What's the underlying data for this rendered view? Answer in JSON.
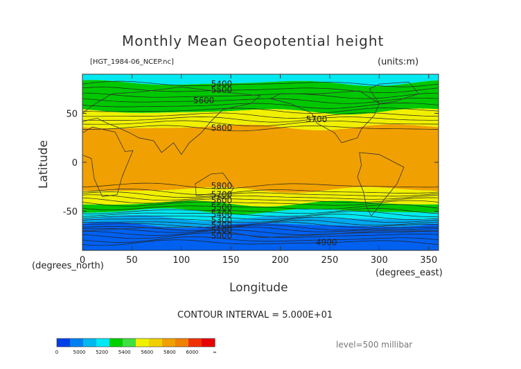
{
  "chart_data": {
    "type": "heatmap",
    "title": "Monthly Mean Geopotential height",
    "file_label": "[HGT_1984-06_NCEP.nc]",
    "units_label": "(units:m)",
    "xlabel": "Longitude",
    "ylabel": "Latitude",
    "x_unit_label": "(degrees_east)",
    "y_unit_label": "(degrees_north)",
    "xlim": [
      0,
      360
    ],
    "ylim": [
      -90,
      90
    ],
    "x_ticks": [
      "0",
      "50",
      "100",
      "150",
      "200",
      "250",
      "300",
      "350"
    ],
    "y_ticks": [
      "50",
      "0",
      "-50"
    ],
    "contour_interval_label": "CONTOUR INTERVAL = 5.000E+01",
    "level_label": "level=500 millibar",
    "contour_labels": [
      {
        "text": "5400",
        "x": 130,
        "y": 80
      },
      {
        "text": "5500",
        "x": 130,
        "y": 74
      },
      {
        "text": "5600",
        "x": 112,
        "y": 63
      },
      {
        "text": "5700",
        "x": 226,
        "y": 44
      },
      {
        "text": "5800",
        "x": 130,
        "y": 35
      },
      {
        "text": "5800",
        "x": 130,
        "y": -24
      },
      {
        "text": "5700",
        "x": 130,
        "y": -33
      },
      {
        "text": "5600",
        "x": 130,
        "y": -39
      },
      {
        "text": "5500",
        "x": 130,
        "y": -46
      },
      {
        "text": "5400",
        "x": 130,
        "y": -53
      },
      {
        "text": "5300",
        "x": 130,
        "y": -59
      },
      {
        "text": "5200",
        "x": 130,
        "y": -64
      },
      {
        "text": "5100",
        "x": 130,
        "y": -69
      },
      {
        "text": "5000",
        "x": 130,
        "y": -75
      },
      {
        "text": "4900",
        "x": 236,
        "y": -82
      }
    ],
    "field_bands": [
      {
        "lat_top": 90,
        "lat_bottom": 81,
        "min": 5400,
        "max": 5500,
        "color": "#00e8f0"
      },
      {
        "lat_top": 81,
        "lat_bottom": 52,
        "min": 5500,
        "max": 5700,
        "color": "#00c800"
      },
      {
        "lat_top": 52,
        "lat_bottom": 36,
        "min": 5700,
        "max": 5800,
        "color": "#f0f000"
      },
      {
        "lat_top": 36,
        "lat_bottom": -28,
        "min": 5800,
        "max": 6000,
        "color": "#f0a000"
      },
      {
        "lat_top": -28,
        "lat_bottom": -42,
        "min": 5700,
        "max": 5800,
        "color": "#f0f000"
      },
      {
        "lat_top": -42,
        "lat_bottom": -50,
        "min": 5600,
        "max": 5700,
        "color": "#00c800"
      },
      {
        "lat_top": -50,
        "lat_bottom": -57,
        "min": 5500,
        "max": 5600,
        "color": "#00e8f0"
      },
      {
        "lat_top": -57,
        "lat_bottom": -64,
        "min": 5300,
        "max": 5400,
        "color": "#00a8f0"
      },
      {
        "lat_top": -64,
        "lat_bottom": -90,
        "min": 4900,
        "max": 5200,
        "color": "#0060f0"
      }
    ],
    "colorbar": {
      "labels": [
        "0",
        "5000",
        "5200",
        "5400",
        "5600",
        "5800",
        "6000",
        "∞"
      ],
      "colors": [
        "#0040e8",
        "#0080f0",
        "#00b8f0",
        "#00e8f8",
        "#00d000",
        "#40e040",
        "#f0f000",
        "#f0d000",
        "#f0a000",
        "#f08000",
        "#f03000",
        "#e80000"
      ]
    }
  }
}
